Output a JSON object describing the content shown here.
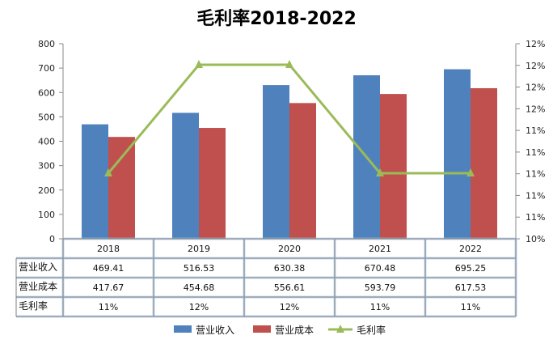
{
  "chart_data": {
    "type": "bar",
    "title": "毛利率2018-2022",
    "categories": [
      "2018",
      "2019",
      "2020",
      "2021",
      "2022"
    ],
    "series": [
      {
        "name": "营业收入",
        "kind": "bar",
        "axis": "left",
        "color": "#4F81BD",
        "values": [
          469.41,
          516.53,
          630.38,
          670.48,
          695.25
        ],
        "table_labels": [
          "469.41",
          "516.53",
          "630.38",
          "670.48",
          "695.25"
        ]
      },
      {
        "name": "营业成本",
        "kind": "bar",
        "axis": "left",
        "color": "#C0504D",
        "values": [
          417.67,
          454.68,
          556.61,
          593.79,
          617.53
        ],
        "table_labels": [
          "417.67",
          "454.68",
          "556.61",
          "593.79",
          "617.53"
        ]
      },
      {
        "name": "毛利率",
        "kind": "line",
        "axis": "right",
        "color": "#9BBB59",
        "values": [
          0.11,
          0.12,
          0.12,
          0.11,
          0.11
        ],
        "table_labels": [
          "11%",
          "12%",
          "12%",
          "11%",
          "11%"
        ]
      }
    ],
    "y_left": {
      "ylim": [
        0,
        800
      ],
      "ticks": [
        "0",
        "100",
        "200",
        "300",
        "400",
        "500",
        "600",
        "700",
        "800"
      ]
    },
    "y_right": {
      "ticks": [
        "10%",
        "11%",
        "11%",
        "11%",
        "11%",
        "11%",
        "12%",
        "12%",
        "12%",
        "12%"
      ]
    },
    "grid": false,
    "data_table": true,
    "legend_position": "bottom"
  }
}
